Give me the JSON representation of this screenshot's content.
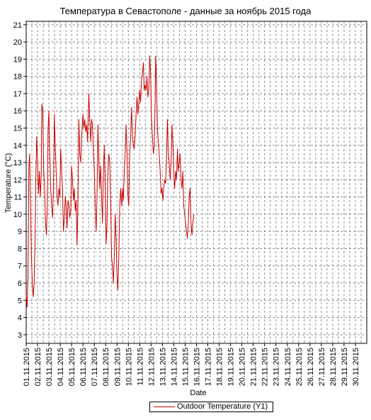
{
  "chart_data": {
    "type": "line",
    "title": "Температура в Севастополе - данные за ноябрь 2015 года",
    "xlabel": "Date",
    "ylabel": "Temperature (°C)",
    "ylim": [
      2.5,
      21.2
    ],
    "xlim": [
      "01.11.2015",
      "01.12.2015"
    ],
    "yticks": [
      3,
      4,
      5,
      6,
      7,
      8,
      9,
      10,
      11,
      12,
      13,
      14,
      15,
      16,
      17,
      18,
      19,
      20,
      21
    ],
    "xticks": [
      "01.11.2015",
      "02.11.2015",
      "03.11.2015",
      "04.11.2015",
      "05.11.2015",
      "06.11.2015",
      "07.11.2015",
      "08.11.2015",
      "09.11.2015",
      "10.11.2015",
      "11.11.2015",
      "12.11.2015",
      "13.11.2015",
      "14.11.2015",
      "15.11.2015",
      "16.11.2015",
      "17.11.2015",
      "18.11.2015",
      "19.11.2015",
      "20.11.2015",
      "21.11.2015",
      "22.11.2015",
      "23.11.2015",
      "24.11.2015",
      "25.11.2015",
      "26.11.2015",
      "27.11.2015",
      "28.11.2015",
      "29.11.2015",
      "30.11.2015"
    ],
    "grid": true,
    "legend_position": "bottom-center",
    "series": [
      {
        "name": "Outdoor Temperature (Y1)",
        "color": "#cc0000",
        "points": [
          [
            0.0,
            5.3
          ],
          [
            0.08,
            4.6
          ],
          [
            0.16,
            6.5
          ],
          [
            0.24,
            12.8
          ],
          [
            0.3,
            13.5
          ],
          [
            0.38,
            10.5
          ],
          [
            0.46,
            7.5
          ],
          [
            0.55,
            5.8
          ],
          [
            0.63,
            5.2
          ],
          [
            0.7,
            6.0
          ],
          [
            0.78,
            8.5
          ],
          [
            0.85,
            12.0
          ],
          [
            0.92,
            14.5
          ],
          [
            1.0,
            13.2
          ],
          [
            1.08,
            11.2
          ],
          [
            1.16,
            12.5
          ],
          [
            1.24,
            11.0
          ],
          [
            1.32,
            12.2
          ],
          [
            1.38,
            16.4
          ],
          [
            1.46,
            16.0
          ],
          [
            1.54,
            12.5
          ],
          [
            1.62,
            11.5
          ],
          [
            1.7,
            9.5
          ],
          [
            1.78,
            8.8
          ],
          [
            1.86,
            10.5
          ],
          [
            1.93,
            15.0
          ],
          [
            2.0,
            16.0
          ],
          [
            2.08,
            13.5
          ],
          [
            2.16,
            11.5
          ],
          [
            2.24,
            10.5
          ],
          [
            2.32,
            9.8
          ],
          [
            2.4,
            11.5
          ],
          [
            2.48,
            15.8
          ],
          [
            2.56,
            14.0
          ],
          [
            2.64,
            12.5
          ],
          [
            2.72,
            11.0
          ],
          [
            2.8,
            10.5
          ],
          [
            2.88,
            11.5
          ],
          [
            2.96,
            11.0
          ],
          [
            3.04,
            13.8
          ],
          [
            3.12,
            12.5
          ],
          [
            3.2,
            11.5
          ],
          [
            3.28,
            9.0
          ],
          [
            3.36,
            9.8
          ],
          [
            3.44,
            11.0
          ],
          [
            3.52,
            10.5
          ],
          [
            3.6,
            9.2
          ],
          [
            3.68,
            10.8
          ],
          [
            3.76,
            10.5
          ],
          [
            3.84,
            9.8
          ],
          [
            3.92,
            10.2
          ],
          [
            4.0,
            12.8
          ],
          [
            4.08,
            12.0
          ],
          [
            4.16,
            10.8
          ],
          [
            4.24,
            11.5
          ],
          [
            4.32,
            10.2
          ],
          [
            4.4,
            10.8
          ],
          [
            4.48,
            8.2
          ],
          [
            4.56,
            10.5
          ],
          [
            4.64,
            15.5
          ],
          [
            4.72,
            13.5
          ],
          [
            4.8,
            13.0
          ],
          [
            4.88,
            14.5
          ],
          [
            5.0,
            15.8
          ],
          [
            5.08,
            15.0
          ],
          [
            5.16,
            15.5
          ],
          [
            5.24,
            14.8
          ],
          [
            5.32,
            15.2
          ],
          [
            5.4,
            14.2
          ],
          [
            5.48,
            16.2
          ],
          [
            5.52,
            17.0
          ],
          [
            5.6,
            15.5
          ],
          [
            5.68,
            14.2
          ],
          [
            5.76,
            15.5
          ],
          [
            5.84,
            15.2
          ],
          [
            5.92,
            13.5
          ],
          [
            6.0,
            12.5
          ],
          [
            6.08,
            10.5
          ],
          [
            6.16,
            9.0
          ],
          [
            6.24,
            11.0
          ],
          [
            6.32,
            15.2
          ],
          [
            6.4,
            13.0
          ],
          [
            6.48,
            11.5
          ],
          [
            6.56,
            12.8
          ],
          [
            6.64,
            11.0
          ],
          [
            6.72,
            9.5
          ],
          [
            6.8,
            12.5
          ],
          [
            6.88,
            14.0
          ],
          [
            6.96,
            11.5
          ],
          [
            7.04,
            8.3
          ],
          [
            7.12,
            9.5
          ],
          [
            7.2,
            12.5
          ],
          [
            7.28,
            13.5
          ],
          [
            7.36,
            13.0
          ],
          [
            7.44,
            10.5
          ],
          [
            7.52,
            7.5
          ],
          [
            7.6,
            7.0
          ],
          [
            7.68,
            6.0
          ],
          [
            7.76,
            7.5
          ],
          [
            7.84,
            10.0
          ],
          [
            7.92,
            8.5
          ],
          [
            8.0,
            6.5
          ],
          [
            8.08,
            5.6
          ],
          [
            8.16,
            7.5
          ],
          [
            8.24,
            10.5
          ],
          [
            8.32,
            11.5
          ],
          [
            8.4,
            10.5
          ],
          [
            8.48,
            11.5
          ],
          [
            8.56,
            10.8
          ],
          [
            8.64,
            12.5
          ],
          [
            8.72,
            13.5
          ],
          [
            8.8,
            15.2
          ],
          [
            8.88,
            13.5
          ],
          [
            8.96,
            11.0
          ],
          [
            9.04,
            10.5
          ],
          [
            9.12,
            13.5
          ],
          [
            9.2,
            14.5
          ],
          [
            9.28,
            16.2
          ],
          [
            9.36,
            14.5
          ],
          [
            9.44,
            14.0
          ],
          [
            9.52,
            13.8
          ],
          [
            9.6,
            14.5
          ],
          [
            9.68,
            15.8
          ],
          [
            9.76,
            16.8
          ],
          [
            9.84,
            15.8
          ],
          [
            9.92,
            16.5
          ],
          [
            10.0,
            17.2
          ],
          [
            10.08,
            16.5
          ],
          [
            10.16,
            17.8
          ],
          [
            10.24,
            18.2
          ],
          [
            10.32,
            18.8
          ],
          [
            10.4,
            17.2
          ],
          [
            10.48,
            17.5
          ],
          [
            10.56,
            17.2
          ],
          [
            10.64,
            18.0
          ],
          [
            10.72,
            16.8
          ],
          [
            10.8,
            17.2
          ],
          [
            10.88,
            19.2
          ],
          [
            10.96,
            18.2
          ],
          [
            11.04,
            15.5
          ],
          [
            11.12,
            14.5
          ],
          [
            11.2,
            13.5
          ],
          [
            11.28,
            14.0
          ],
          [
            11.36,
            16.5
          ],
          [
            11.4,
            19.2
          ],
          [
            11.48,
            17.5
          ],
          [
            11.56,
            15.0
          ],
          [
            11.64,
            14.2
          ],
          [
            11.72,
            13.5
          ],
          [
            11.8,
            12.5
          ],
          [
            11.88,
            11.2
          ],
          [
            11.96,
            11.5
          ],
          [
            12.04,
            10.8
          ],
          [
            12.12,
            11.5
          ],
          [
            12.2,
            12.0
          ],
          [
            12.28,
            11.8
          ],
          [
            12.36,
            13.5
          ],
          [
            12.44,
            15.5
          ],
          [
            12.52,
            13.5
          ],
          [
            12.6,
            13.0
          ],
          [
            12.68,
            12.0
          ],
          [
            12.76,
            13.0
          ],
          [
            12.84,
            15.2
          ],
          [
            12.92,
            14.0
          ],
          [
            13.0,
            12.5
          ],
          [
            13.08,
            11.5
          ],
          [
            13.16,
            12.5
          ],
          [
            13.24,
            12.0
          ],
          [
            13.32,
            13.8
          ],
          [
            13.4,
            12.5
          ],
          [
            13.48,
            13.0
          ],
          [
            13.56,
            13.5
          ],
          [
            13.64,
            12.0
          ],
          [
            13.72,
            11.5
          ],
          [
            13.8,
            12.5
          ],
          [
            13.88,
            10.5
          ],
          [
            13.96,
            10.0
          ],
          [
            14.04,
            9.5
          ],
          [
            14.12,
            9.0
          ],
          [
            14.2,
            8.6
          ],
          [
            14.28,
            9.5
          ],
          [
            14.36,
            11.0
          ],
          [
            14.44,
            11.5
          ],
          [
            14.52,
            9.5
          ],
          [
            14.6,
            8.8
          ],
          [
            14.68,
            9.5
          ],
          [
            14.76,
            10.0
          ]
        ]
      }
    ]
  },
  "legend": {
    "label": "Outdoor Temperature (Y1)"
  }
}
